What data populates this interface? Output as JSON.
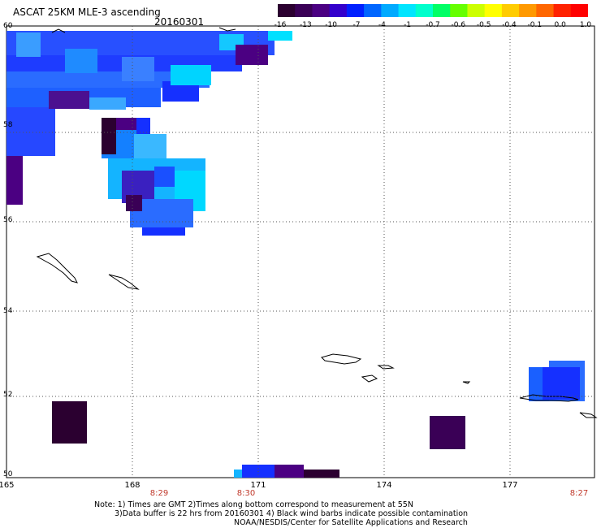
{
  "header": {
    "title": "ASCAT 25KM MLE-3 ascending",
    "date": "20160301"
  },
  "colorbar": {
    "ticks": [
      "-16",
      "-13",
      "-10",
      "-7",
      "-4",
      "-1",
      "-0.7",
      "-0.6",
      "-0.5",
      "-0.4",
      "-0.1",
      "0.0",
      "1.0"
    ],
    "colors": [
      "#2b0030",
      "#3a0056",
      "#4b0082",
      "#3300cc",
      "#0020ff",
      "#0066ff",
      "#00aaff",
      "#00e5ff",
      "#00ffcc",
      "#00ff66",
      "#66ff00",
      "#ccff00",
      "#ffff00",
      "#ffcc00",
      "#ff9900",
      "#ff6600",
      "#ff2200",
      "#ff0000"
    ]
  },
  "axes": {
    "lat_labels": [
      "60",
      "58",
      "56",
      "54",
      "52",
      "50"
    ],
    "lon_labels": [
      "165",
      "168",
      "171",
      "174",
      "177"
    ],
    "time_labels": [
      "8:29",
      "8:30",
      "8:27"
    ]
  },
  "notes": {
    "line1": "Note: 1) Times are GMT 2)Times along bottom correspond to measurement at 55N",
    "line2": "3)Data buffer is 22 hrs from 20160301 4) Black wind barbs indicate possible contamination",
    "line3": "NOAA/NESDIS/Center for Satellite Applications and Research"
  }
}
